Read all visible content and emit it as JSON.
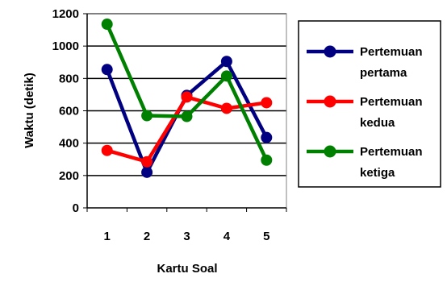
{
  "chart_data": {
    "type": "line",
    "title": "",
    "xlabel": "Kartu Soal",
    "ylabel": "Waktu (detik)",
    "categories": [
      "1",
      "2",
      "3",
      "4",
      "5"
    ],
    "ylim": [
      0,
      1200
    ],
    "yticks": [
      0,
      200,
      400,
      600,
      800,
      1000,
      1200
    ],
    "grid": "horizontal",
    "legend_position": "right",
    "series": [
      {
        "name": "Pertemuan pertama",
        "name_lines": [
          "Pertemuan",
          "pertama"
        ],
        "color": "#000080",
        "values": [
          855,
          220,
          695,
          905,
          435
        ]
      },
      {
        "name": "Pertemuan kedua",
        "name_lines": [
          "Pertemuan",
          "kedua"
        ],
        "color": "#ff0000",
        "values": [
          355,
          285,
          685,
          615,
          650
        ]
      },
      {
        "name": "Pertemuan ketiga",
        "name_lines": [
          "Pertemuan",
          "ketiga"
        ],
        "color": "#008000",
        "values": [
          1135,
          570,
          565,
          815,
          295
        ]
      }
    ]
  }
}
